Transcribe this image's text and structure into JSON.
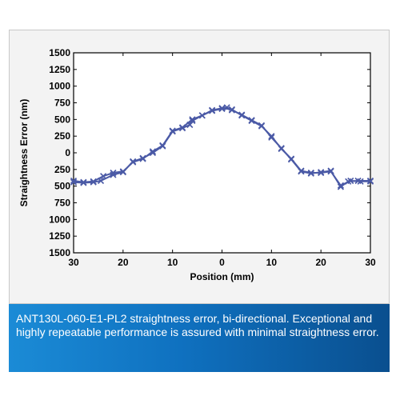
{
  "caption": "ANT130L-060-E1-PL2 straightness error, bi-directional. Exceptional and highly repeatable performance is assured with minimal straightness error.",
  "chart_data": {
    "type": "line",
    "title": "",
    "xlabel": "Position (mm)",
    "ylabel": "Straightness Error (nm)",
    "xlim": [
      -30,
      30
    ],
    "ylim": [
      -1500,
      1500
    ],
    "x_ticks": [
      -30,
      -20,
      -10,
      0,
      10,
      20,
      30
    ],
    "x_tick_labels": [
      "30",
      "20",
      "10",
      "0",
      "10",
      "20",
      "30"
    ],
    "y_ticks": [
      1500,
      1250,
      1000,
      750,
      500,
      250,
      0,
      -250,
      -500,
      -750,
      -1000,
      -1250,
      -1500
    ],
    "y_tick_labels": [
      "1500",
      "1250",
      "1000",
      "750",
      "500",
      "250",
      "0",
      "250",
      "500",
      "750",
      "1000",
      "1250",
      "1500"
    ],
    "grid": false,
    "line_color": "#4b5aa6",
    "series": [
      {
        "marker": "x",
        "x": [
          -30,
          -28,
          -26,
          -24.5,
          -22,
          -20,
          -18,
          -16,
          -14,
          -12,
          -10,
          -8,
          -6.5,
          -6,
          -4,
          -2,
          0,
          1,
          2,
          4,
          6,
          8,
          10,
          12,
          14,
          16,
          18,
          20,
          22,
          24,
          25.5,
          27.5,
          30
        ],
        "y": [
          -440,
          -450,
          -440,
          -420,
          -330,
          -290,
          -130,
          -80,
          0,
          100,
          320,
          370,
          420,
          480,
          560,
          630,
          660,
          680,
          640,
          570,
          490,
          410,
          230,
          70,
          -100,
          -280,
          -310,
          -290,
          -270,
          -510,
          -430,
          -420,
          -420
        ]
      },
      {
        "marker": "x",
        "x": [
          -30,
          -28,
          -26,
          -24,
          -22,
          -20,
          -18,
          -16,
          -14,
          -12,
          -10,
          -8,
          -6,
          -4,
          -2,
          0,
          2,
          4,
          6,
          8,
          10,
          12,
          14,
          16,
          18,
          20,
          22,
          24,
          26,
          28,
          30
        ],
        "y": [
          -420,
          -440,
          -430,
          -350,
          -300,
          -280,
          -140,
          -90,
          20,
          110,
          330,
          380,
          500,
          560,
          640,
          670,
          650,
          560,
          480,
          400,
          250,
          60,
          -90,
          -270,
          -300,
          -300,
          -280,
          -490,
          -420,
          -430,
          -430
        ]
      }
    ]
  }
}
